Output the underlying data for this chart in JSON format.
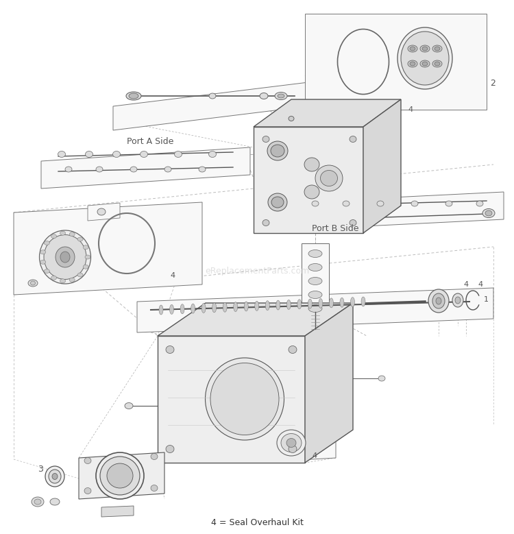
{
  "bg_color": "#ffffff",
  "fig_width": 7.5,
  "fig_height": 7.79,
  "dpi": 100,
  "watermark_text": "eReplacementParts.com",
  "watermark_color": "#cccccc",
  "watermark_fontsize": 9,
  "footer_text": "4 = Seal Overhaul Kit",
  "footer_fontsize": 9,
  "label_color": "#333333",
  "line_color": "#555555",
  "light_line": "#aaaaaa",
  "dash_color": "#aaaaaa",
  "part_fill": "#f2f2f2",
  "part_edge": "#555555",
  "plate_fill": "#f8f8f8",
  "plate_edge": "#777777",
  "detail_fill": "#dddddd",
  "detail_edge": "#666666"
}
